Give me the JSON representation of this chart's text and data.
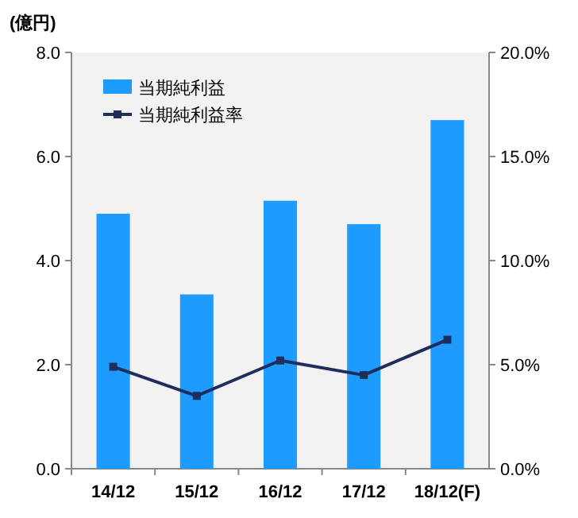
{
  "chart_data": {
    "type": "bar",
    "ylabel": "(億円)",
    "categories": [
      "14/12",
      "15/12",
      "16/12",
      "17/12",
      "18/12(F)"
    ],
    "series": [
      {
        "name": "当期純利益",
        "color": "#1e9bff",
        "values": [
          4.9,
          3.35,
          5.15,
          4.7,
          6.7
        ]
      },
      {
        "name": "当期純利益率",
        "type": "line",
        "axis": "y2",
        "color": "#1f2d5c",
        "marker": "square",
        "values": [
          4.9,
          3.5,
          5.2,
          4.5,
          6.2
        ]
      }
    ],
    "ylim": [
      0,
      8
    ],
    "yticks": [
      {
        "value": 0,
        "label": "0.0"
      },
      {
        "value": 2,
        "label": "2.0"
      },
      {
        "value": 4,
        "label": "4.0"
      },
      {
        "value": 6,
        "label": "6.0"
      },
      {
        "value": 8,
        "label": "8.0"
      }
    ],
    "y2lim": [
      0,
      20
    ],
    "y2ticks": [
      {
        "value": 0,
        "label": "0.0%"
      },
      {
        "value": 5,
        "label": "5.0%"
      },
      {
        "value": 10,
        "label": "10.0%"
      },
      {
        "value": 15,
        "label": "15.0%"
      },
      {
        "value": 20,
        "label": "20.0%"
      }
    ],
    "legend": "top left",
    "grid": false
  }
}
